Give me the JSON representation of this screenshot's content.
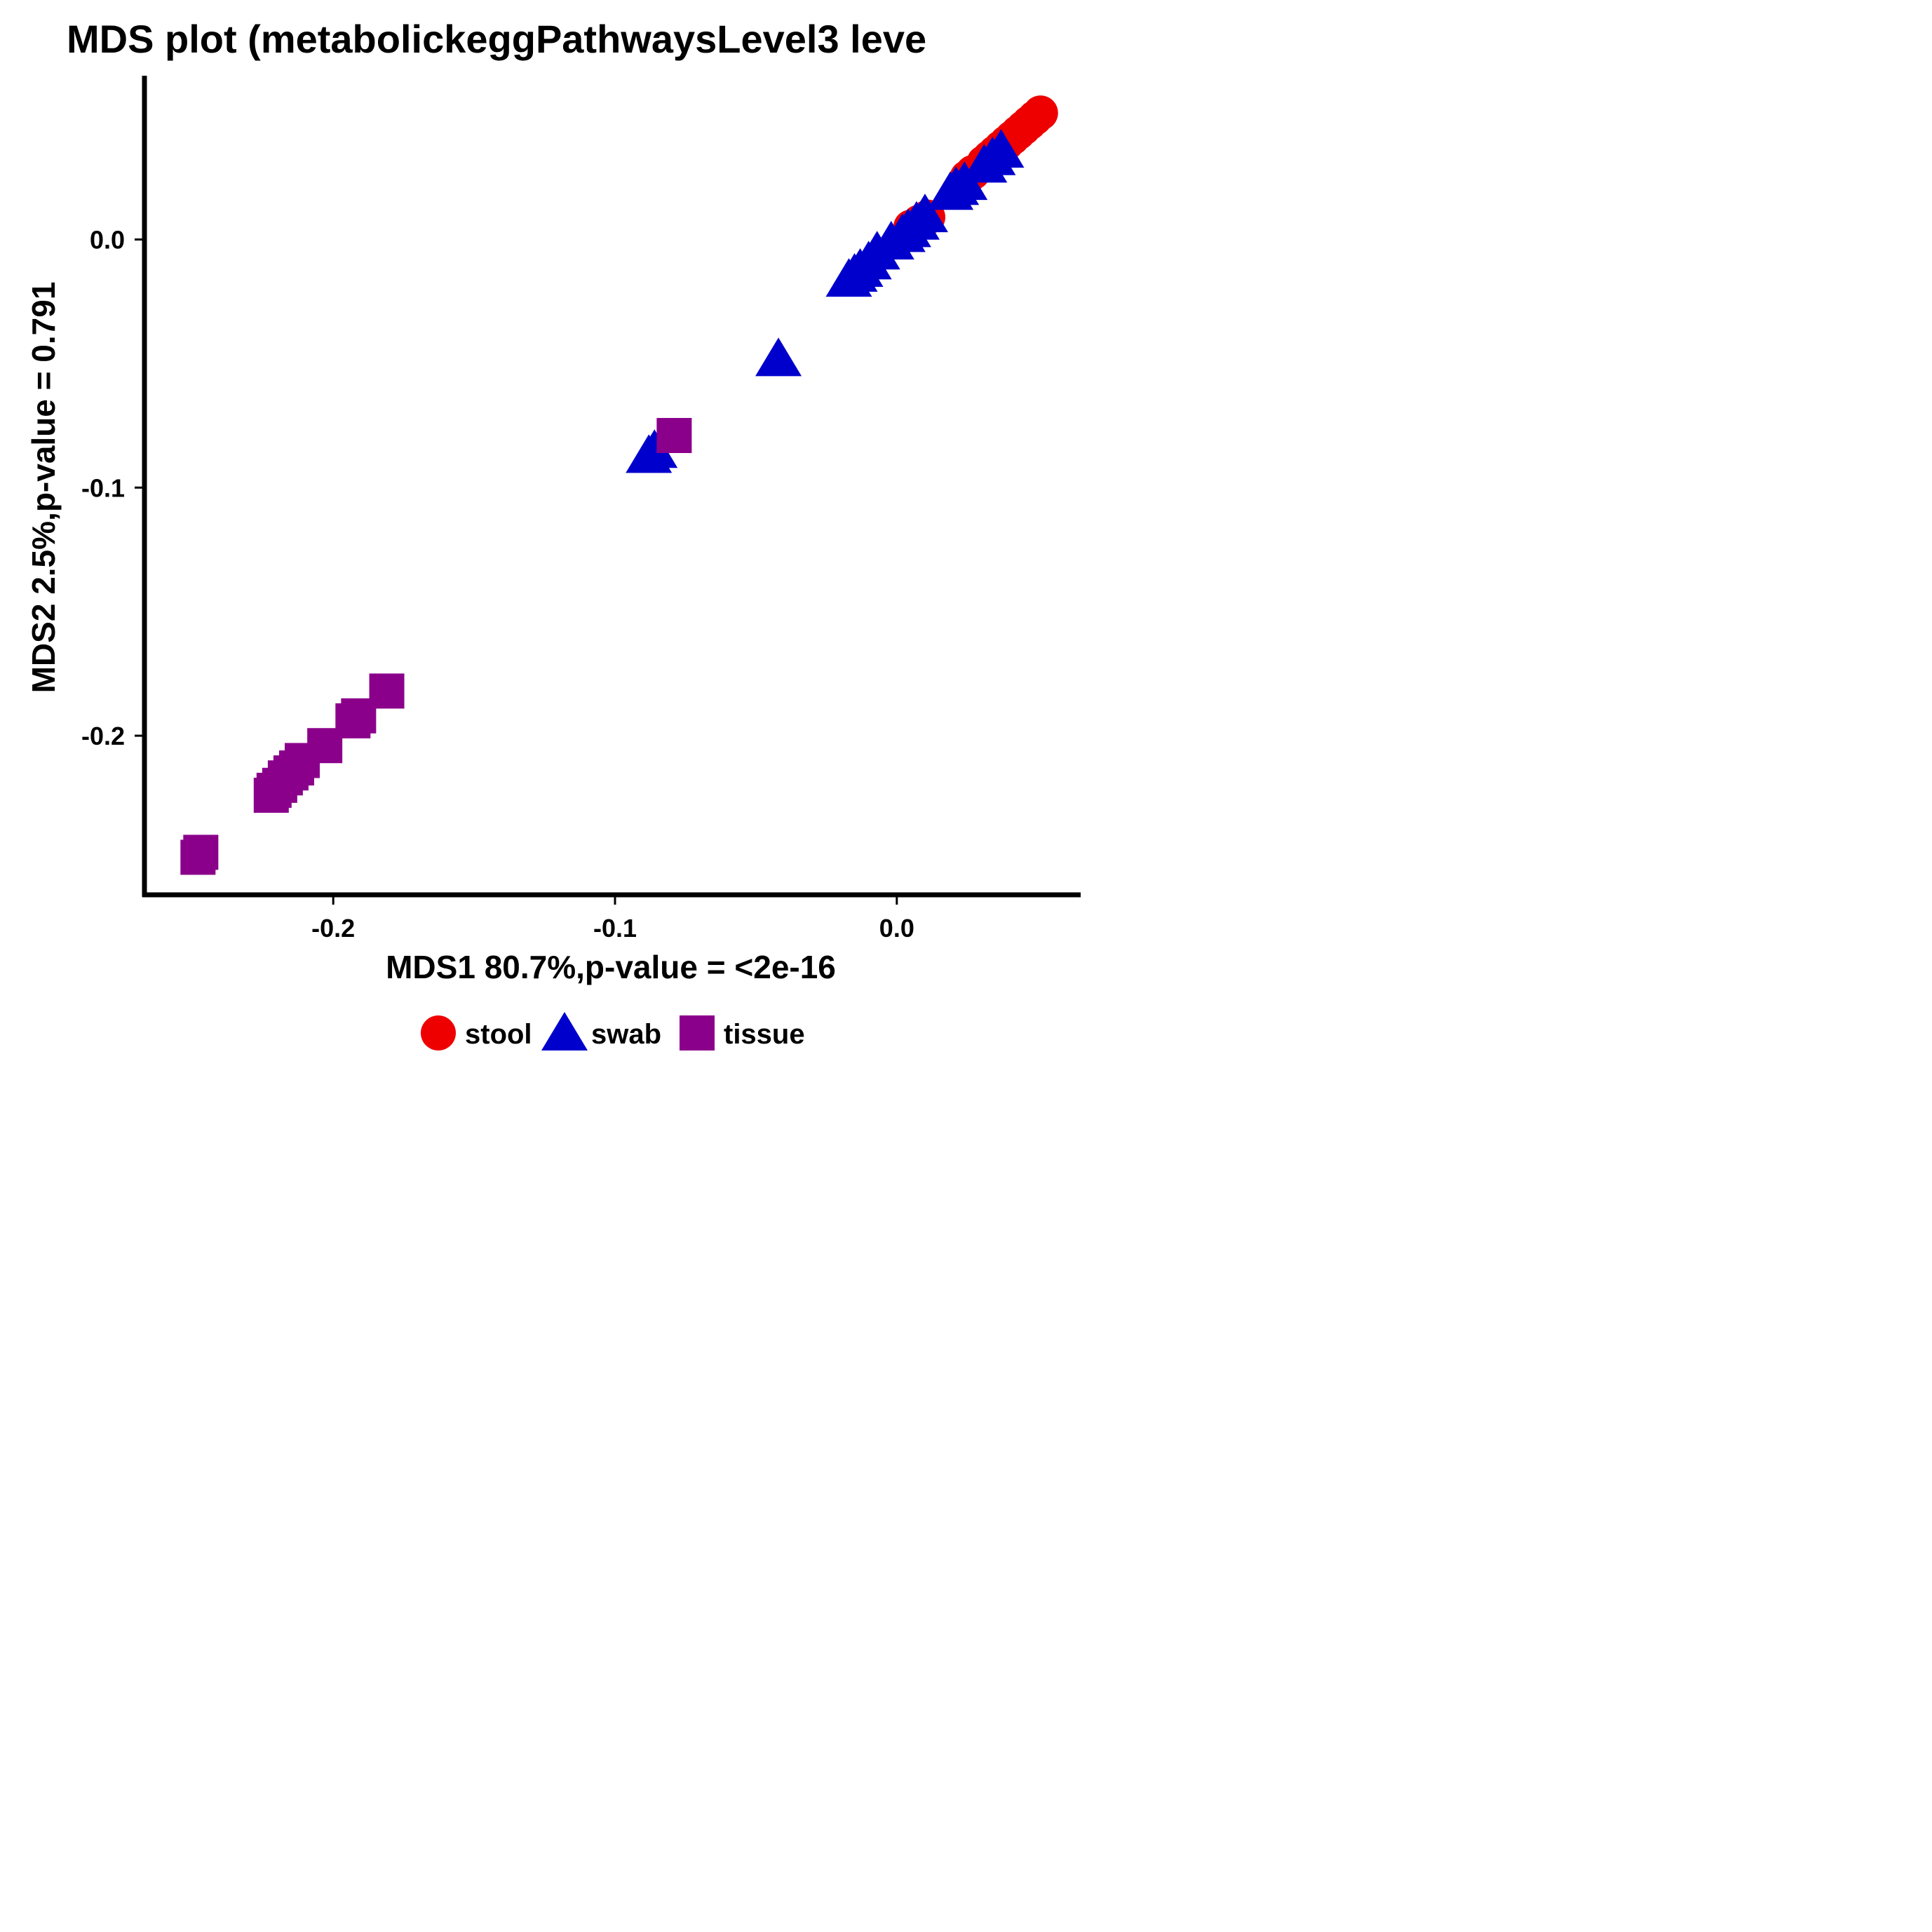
{
  "chart_data": {
    "type": "scatter",
    "title": "MDS plot (metabolickeggPathwaysLevel3 leve",
    "xlabel": "MDS1 80.7%,p-value = <2e-16",
    "ylabel": "MDS2 2.5%,p-value = 0.791",
    "xlim": [
      -0.266,
      0.065
    ],
    "ylim": [
      -0.263,
      0.066
    ],
    "xticks": [
      -0.2,
      -0.1,
      0.0
    ],
    "xtick_labels": [
      "-0.2",
      "-0.1",
      "0.0"
    ],
    "yticks": [
      0.0,
      -0.1,
      -0.2
    ],
    "ytick_labels": [
      "0.0",
      "-0.1",
      "-0.2"
    ],
    "grid": false,
    "legend_position": "bottom",
    "series": [
      {
        "name": "stool",
        "shape": "circle",
        "color": "#EE0000",
        "points": [
          [
            0.051,
            0.051
          ],
          [
            0.049,
            0.049
          ],
          [
            0.047,
            0.047
          ],
          [
            0.045,
            0.045
          ],
          [
            0.043,
            0.043
          ],
          [
            0.041,
            0.041
          ],
          [
            0.039,
            0.039
          ],
          [
            0.037,
            0.037
          ],
          [
            0.035,
            0.035
          ],
          [
            0.033,
            0.033
          ],
          [
            0.031,
            0.031
          ],
          [
            0.027,
            0.027
          ],
          [
            0.025,
            0.025
          ],
          [
            0.011,
            0.009
          ],
          [
            0.008,
            0.007
          ],
          [
            0.005,
            0.005
          ]
        ]
      },
      {
        "name": "swab",
        "shape": "triangle",
        "color": "#0000CD",
        "points": [
          [
            0.037,
            0.036
          ],
          [
            0.034,
            0.033
          ],
          [
            0.031,
            0.03
          ],
          [
            0.024,
            0.023
          ],
          [
            0.021,
            0.021
          ],
          [
            0.019,
            0.019
          ],
          [
            0.01,
            0.01
          ],
          [
            0.007,
            0.007
          ],
          [
            0.004,
            0.004
          ],
          [
            0.002,
            0.002
          ],
          [
            -0.002,
            -0.001
          ],
          [
            -0.007,
            -0.005
          ],
          [
            -0.01,
            -0.009
          ],
          [
            -0.013,
            -0.012
          ],
          [
            -0.015,
            -0.014
          ],
          [
            -0.017,
            -0.016
          ],
          [
            -0.042,
            -0.048
          ],
          [
            -0.086,
            -0.085
          ],
          [
            -0.088,
            -0.087
          ]
        ]
      },
      {
        "name": "tissue",
        "shape": "square",
        "color": "#8B008B",
        "points": [
          [
            -0.079,
            -0.079
          ],
          [
            -0.181,
            -0.182
          ],
          [
            -0.191,
            -0.192
          ],
          [
            -0.193,
            -0.194
          ],
          [
            -0.203,
            -0.204
          ],
          [
            -0.211,
            -0.21
          ],
          [
            -0.213,
            -0.213
          ],
          [
            -0.215,
            -0.215
          ],
          [
            -0.217,
            -0.217
          ],
          [
            -0.219,
            -0.22
          ],
          [
            -0.221,
            -0.222
          ],
          [
            -0.222,
            -0.224
          ],
          [
            -0.247,
            -0.247
          ],
          [
            -0.248,
            -0.249
          ]
        ]
      }
    ]
  }
}
